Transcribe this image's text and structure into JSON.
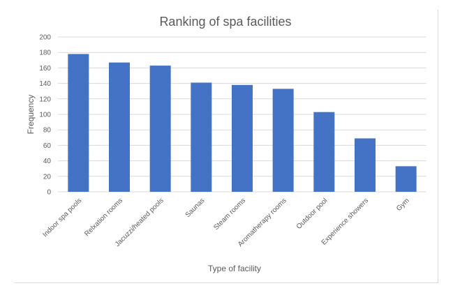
{
  "chart_data": {
    "type": "bar",
    "title": "Ranking of spa facilities",
    "xlabel": "Type of facility",
    "ylabel": "Frequency",
    "ylim": [
      0,
      200
    ],
    "yticks": [
      0,
      20,
      40,
      60,
      80,
      100,
      120,
      140,
      160,
      180,
      200
    ],
    "grid": true,
    "categories": [
      "Indoor spa pools",
      "Relxation rooms",
      "Jacuzzi/heated pools",
      "Saunas",
      "Steam rooms",
      "Aromatherapy rooms",
      "Outdoor pool",
      "Experience showers",
      "Gym"
    ],
    "values": [
      178,
      167,
      163,
      141,
      138,
      133,
      103,
      69,
      33
    ],
    "colors": {
      "bar": "#4472c4",
      "grid": "#d9d9d9",
      "text": "#595959"
    }
  }
}
